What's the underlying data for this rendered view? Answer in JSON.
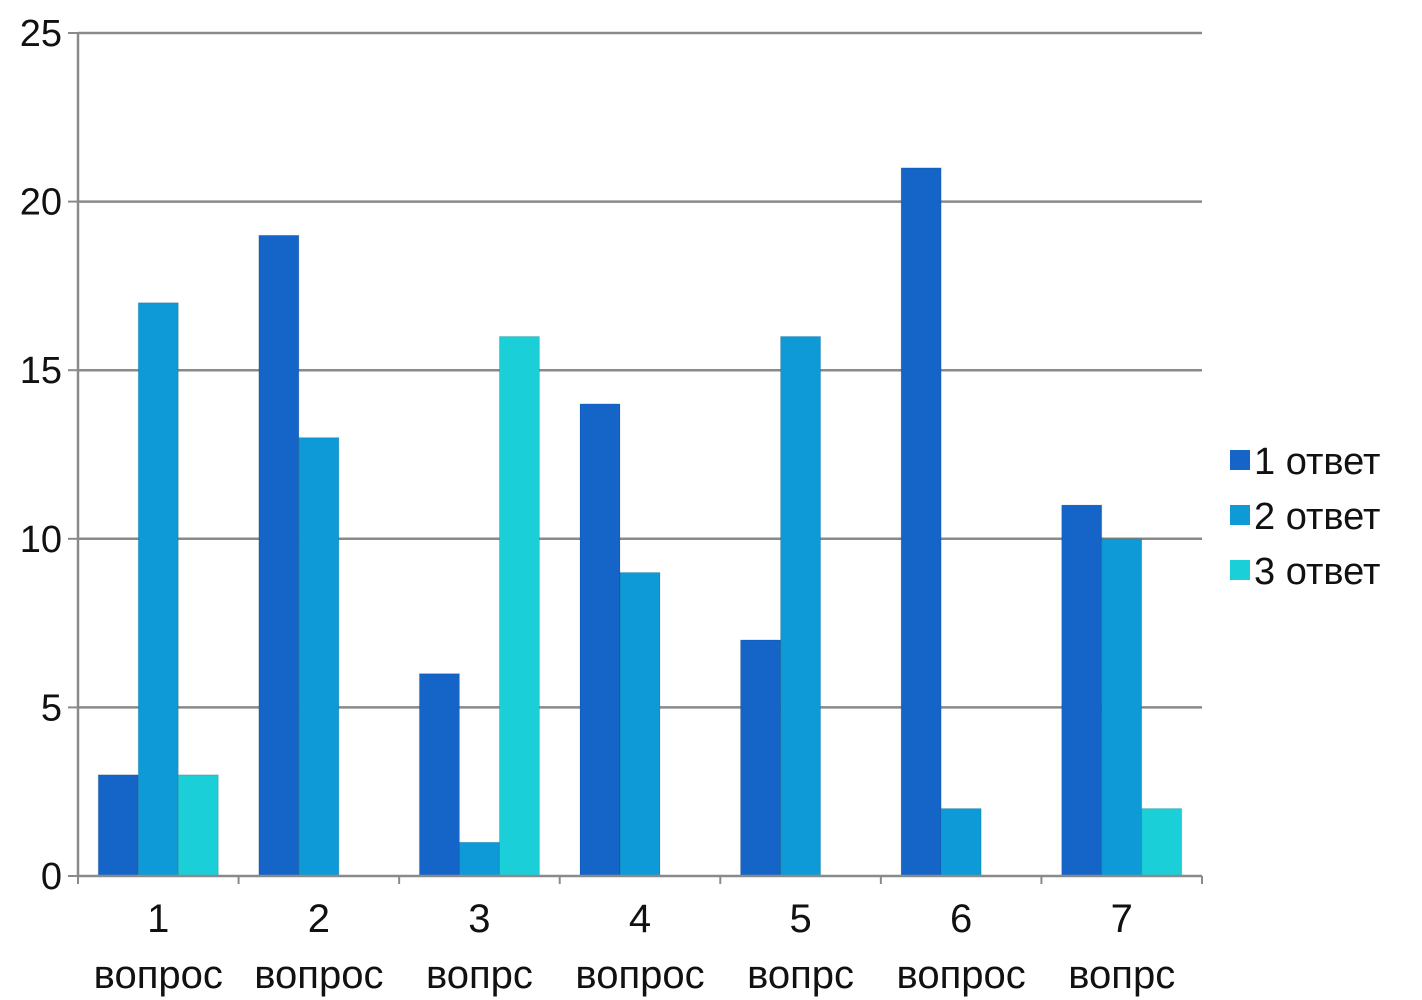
{
  "chart_data": {
    "type": "bar",
    "title": "",
    "xlabel": "",
    "ylabel": "",
    "ylim": [
      0,
      25
    ],
    "y_ticks": [
      0,
      5,
      10,
      15,
      20,
      25
    ],
    "grid": true,
    "legend_position": "right",
    "categories": [
      [
        "1",
        "вопрос"
      ],
      [
        "2",
        "вопрос"
      ],
      [
        "3",
        "вопрс"
      ],
      [
        "4",
        "вопрос"
      ],
      [
        "5",
        "вопрс"
      ],
      [
        "6",
        "вопрос"
      ],
      [
        "7",
        "вопрс"
      ]
    ],
    "series": [
      {
        "name": "1 ответ",
        "color": "#1565C8",
        "values": [
          3,
          19,
          6,
          14,
          7,
          21,
          11
        ]
      },
      {
        "name": "2 ответ",
        "color": "#0E9AD6",
        "values": [
          17,
          13,
          1,
          9,
          16,
          2,
          10
        ]
      },
      {
        "name": "3 ответ",
        "color": "#1ACFD8",
        "values": [
          3,
          0,
          16,
          0,
          0,
          0,
          2
        ]
      }
    ]
  }
}
